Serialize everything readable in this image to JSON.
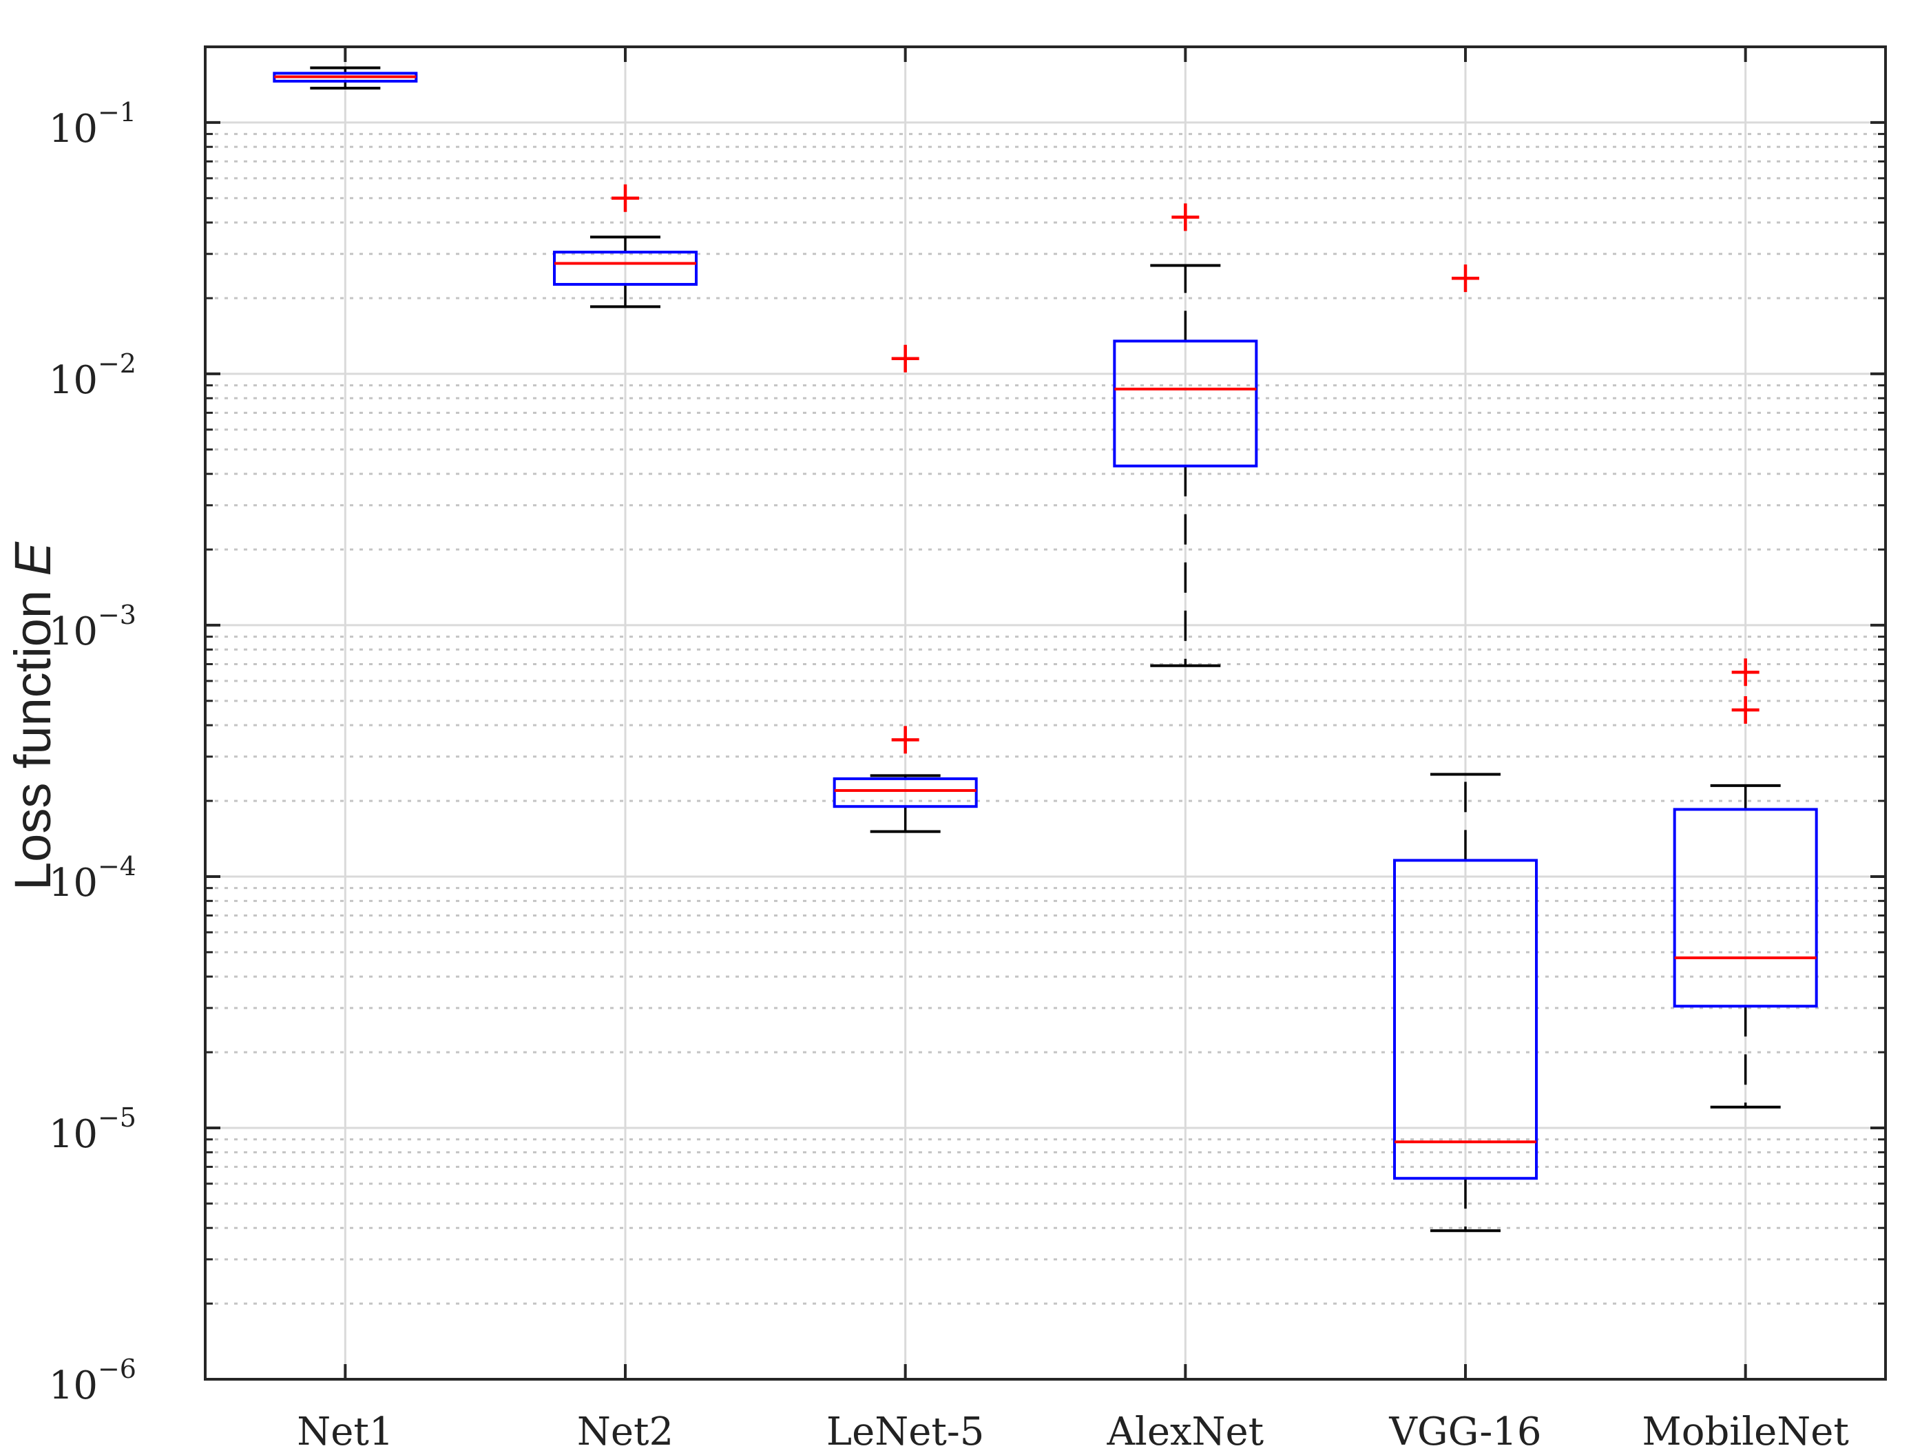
{
  "chart_data": {
    "type": "box",
    "title": "",
    "xlabel": "",
    "ylabel": "Loss function",
    "ylabel_symbol": "E",
    "yscale": "log",
    "ylim": [
      1e-06,
      0.2
    ],
    "grid": true,
    "yticks": [
      {
        "base": "10",
        "exp": "−1",
        "value": 0.1
      },
      {
        "base": "10",
        "exp": "−2",
        "value": 0.01
      },
      {
        "base": "10",
        "exp": "−3",
        "value": 0.001
      },
      {
        "base": "10",
        "exp": "−4",
        "value": 0.0001
      },
      {
        "base": "10",
        "exp": "−5",
        "value": 1e-05
      },
      {
        "base": "10",
        "exp": "−6",
        "value": 1e-06
      }
    ],
    "categories": [
      "Net1",
      "Net2",
      "LeNet-5",
      "AlexNet",
      "VGG-16",
      "MobileNet"
    ],
    "boxes": [
      {
        "name": "Net1",
        "whisker_low": 0.137,
        "q1": 0.146,
        "median": 0.152,
        "q3": 0.157,
        "whisker_high": 0.165,
        "outliers": []
      },
      {
        "name": "Net2",
        "whisker_low": 0.0185,
        "q1": 0.0227,
        "median": 0.0275,
        "q3": 0.0305,
        "whisker_high": 0.035,
        "outliers": [
          0.05
        ]
      },
      {
        "name": "LeNet-5",
        "whisker_low": 0.000151,
        "q1": 0.00019,
        "median": 0.00022,
        "q3": 0.000245,
        "whisker_high": 0.000252,
        "outliers": [
          0.0115,
          0.00035
        ]
      },
      {
        "name": "AlexNet",
        "whisker_low": 0.00069,
        "q1": 0.0043,
        "median": 0.0087,
        "q3": 0.0135,
        "whisker_high": 0.027,
        "outliers": [
          0.042
        ]
      },
      {
        "name": "VGG-16",
        "whisker_low": 3.9e-06,
        "q1": 6.3e-06,
        "median": 8.8e-06,
        "q3": 0.000116,
        "whisker_high": 0.000255,
        "outliers": [
          0.024
        ]
      },
      {
        "name": "MobileNet",
        "whisker_low": 1.21e-05,
        "q1": 3.05e-05,
        "median": 4.75e-05,
        "q3": 0.000185,
        "whisker_high": 0.00023,
        "outliers": [
          0.00065,
          0.00046
        ]
      }
    ],
    "colors": {
      "box": "#0000ff",
      "median": "#ff0000",
      "outlier": "#ff0000",
      "whisker": "#000000",
      "grid_major": "#dadada",
      "grid_minor": "#c4c4c4",
      "axis": "#262626"
    }
  }
}
